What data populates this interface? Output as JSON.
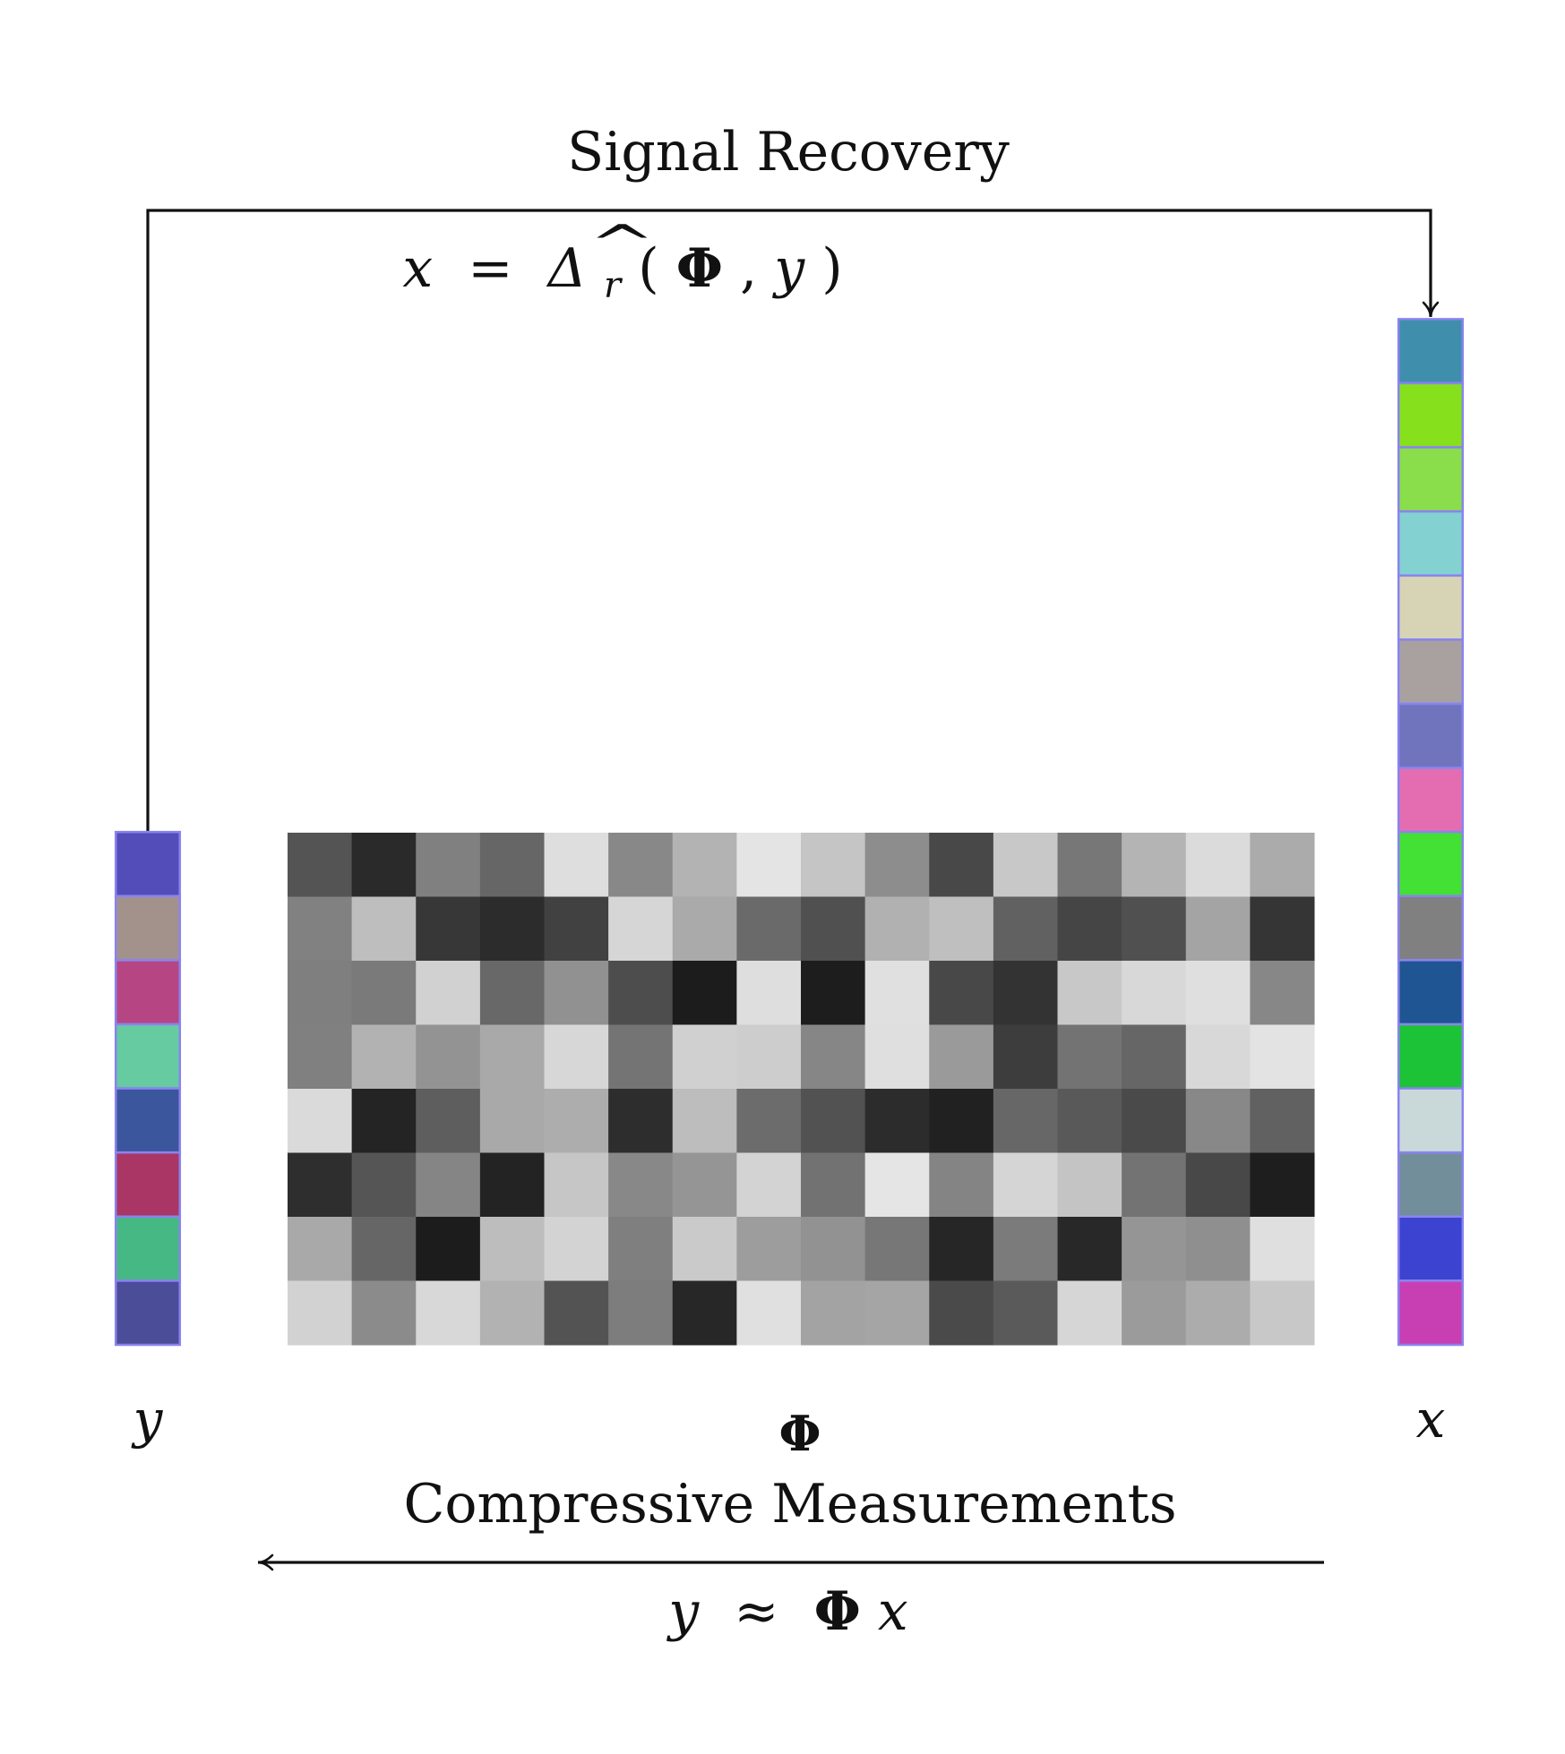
{
  "top": {
    "title": "Signal Recovery",
    "formula": {
      "x_hat": "x",
      "hat": "^",
      "equals": "=",
      "delta": "Δ",
      "sub": "r",
      "args_open": "(",
      "phi": "Φ",
      "comma": ", ",
      "y": "y",
      "args_close": ")"
    }
  },
  "labels": {
    "y": "y",
    "phi": "Φ",
    "x": "x"
  },
  "bottom": {
    "title": "Compressive Measurements",
    "formula": {
      "y": "y",
      "approx": "≈",
      "phi": "Φ",
      "x": "x"
    }
  },
  "colors": {
    "line": "#111111",
    "vector_border": "#8a83f0",
    "y_vector": [
      "#534dba",
      "#a3928b",
      "#b64683",
      "#66cba1",
      "#3c569e",
      "#a93664",
      "#46b884",
      "#4b4d98"
    ],
    "x_vector": [
      "#3f8fac",
      "#86e01c",
      "#8add4b",
      "#83d1d0",
      "#d6d4b4",
      "#a8a1a0",
      "#6f74bd",
      "#e46db2",
      "#43e036",
      "#808080",
      "#1e5592",
      "#1dc336",
      "#c9d9d9",
      "#728e9b",
      "#3c43d1",
      "#c83fb3"
    ],
    "phi_matrix": [
      [
        "#545454",
        "#2a2a2a",
        "#808080",
        "#666666",
        "#dedede",
        "#888888",
        "#b3b3b3",
        "#e4e4e4",
        "#c5c5c5",
        "#8d8d8d",
        "#484848",
        "#c8c8c8",
        "#777777",
        "#b4b4b4",
        "#dbdbdb",
        "#ababab"
      ],
      [
        "#818181",
        "#bebebe",
        "#373737",
        "#2c2c2c",
        "#414141",
        "#d6d6d6",
        "#aaaaaa",
        "#6a6a6a",
        "#505050",
        "#b1b1b1",
        "#bfbfbf",
        "#616161",
        "#454545",
        "#505050",
        "#a4a4a4",
        "#353535"
      ],
      [
        "#7f7f7f",
        "#7a7a7a",
        "#d1d1d1",
        "#686868",
        "#919191",
        "#4d4d4d",
        "#1c1c1c",
        "#dedede",
        "#1d1d1d",
        "#e0e0e0",
        "#484848",
        "#333333",
        "#c8c8c8",
        "#d8d8d8",
        "#dfdfdf",
        "#878787"
      ],
      [
        "#808080",
        "#b2b2b2",
        "#939393",
        "#a9a9a9",
        "#d7d7d7",
        "#747474",
        "#d0d0d0",
        "#cdcdcd",
        "#868686",
        "#dfdfdf",
        "#9a9a9a",
        "#3d3d3d",
        "#737373",
        "#666666",
        "#d8d8d8",
        "#e3e3e3"
      ],
      [
        "#dadada",
        "#242424",
        "#5e5e5e",
        "#a9a9a9",
        "#adadad",
        "#2d2d2d",
        "#bdbdbd",
        "#6c6c6c",
        "#525252",
        "#2c2c2c",
        "#212121",
        "#676767",
        "#595959",
        "#4a4a4a",
        "#888888",
        "#616161"
      ],
      [
        "#2e2e2e",
        "#555555",
        "#858585",
        "#232323",
        "#c6c6c6",
        "#888888",
        "#959595",
        "#d3d3d3",
        "#727272",
        "#e5e5e5",
        "#848484",
        "#d5d5d5",
        "#c4c4c4",
        "#737373",
        "#484848",
        "#1e1e1e"
      ],
      [
        "#a9a9a9",
        "#666666",
        "#1c1c1c",
        "#bdbdbd",
        "#d3d3d3",
        "#7f7f7f",
        "#cacaca",
        "#9d9d9d",
        "#929292",
        "#777777",
        "#262626",
        "#7b7b7b",
        "#282828",
        "#959595",
        "#8f8f8f",
        "#dfdfdf"
      ],
      [
        "#d2d2d2",
        "#8b8b8b",
        "#d8d8d8",
        "#b2b2b2",
        "#535353",
        "#7d7d7d",
        "#272727",
        "#e0e0e0",
        "#a3a3a3",
        "#a5a5a5",
        "#4a4a4a",
        "#5a5a5a",
        "#d6d6d6",
        "#9b9b9b",
        "#acacac",
        "#c8c8c8"
      ]
    ]
  }
}
